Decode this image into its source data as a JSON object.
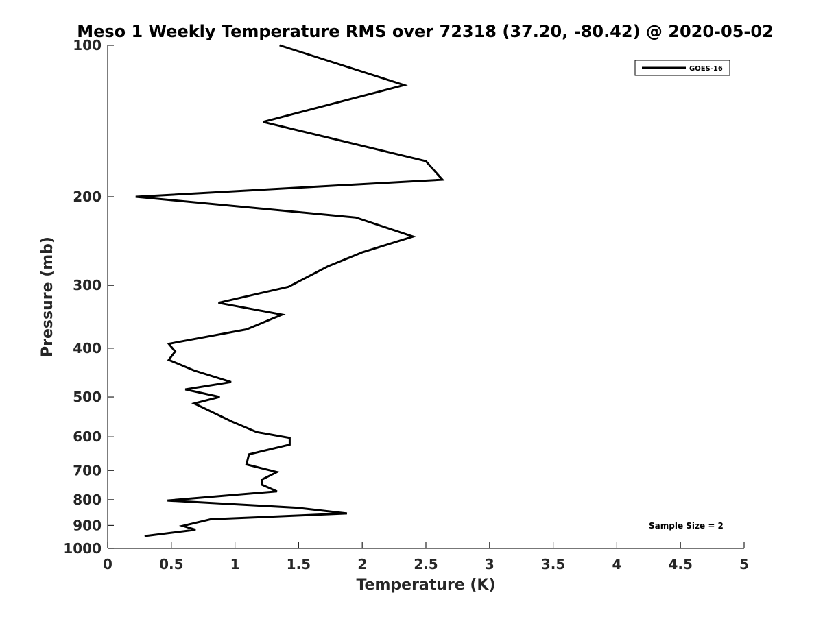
{
  "chart_data": {
    "type": "line",
    "title": "Meso 1 Weekly Temperature RMS over 72318 (37.20, -80.42) @ 2020-05-02",
    "xlabel": "Temperature (K)",
    "ylabel": "Pressure (mb)",
    "xlim": [
      0,
      5
    ],
    "ylim": [
      100,
      1000
    ],
    "yscale": "log",
    "y_reversed": true,
    "x_ticks": [
      "0",
      "0.5",
      "1",
      "1.5",
      "2",
      "2.5",
      "3",
      "3.5",
      "4",
      "4.5",
      "5"
    ],
    "y_ticks": [
      "100",
      "200",
      "300",
      "400",
      "500",
      "600",
      "700",
      "800",
      "900",
      "1000"
    ],
    "grid": false,
    "legend": {
      "placement": "top-right",
      "entries": [
        "GOES-16"
      ]
    },
    "annotation": "Sample Size = 2",
    "series": [
      {
        "name": "GOES-16",
        "color": "#000000",
        "points": [
          [
            1.35,
            100
          ],
          [
            2.33,
            120
          ],
          [
            1.22,
            142
          ],
          [
            2.5,
            170
          ],
          [
            2.63,
            185
          ],
          [
            0.22,
            200
          ],
          [
            1.95,
            220
          ],
          [
            2.4,
            240
          ],
          [
            2.0,
            258
          ],
          [
            1.73,
            275
          ],
          [
            1.42,
            302
          ],
          [
            0.87,
            325
          ],
          [
            1.37,
            343
          ],
          [
            1.09,
            367
          ],
          [
            0.48,
            392
          ],
          [
            0.53,
            406
          ],
          [
            0.48,
            422
          ],
          [
            0.68,
            443
          ],
          [
            0.97,
            467
          ],
          [
            0.61,
            483
          ],
          [
            0.88,
            500
          ],
          [
            0.68,
            515
          ],
          [
            0.98,
            560
          ],
          [
            1.17,
            587
          ],
          [
            1.43,
            603
          ],
          [
            1.43,
            622
          ],
          [
            1.11,
            650
          ],
          [
            1.09,
            681
          ],
          [
            1.33,
            705
          ],
          [
            1.21,
            730
          ],
          [
            1.21,
            747
          ],
          [
            1.33,
            770
          ],
          [
            0.47,
            803
          ],
          [
            1.49,
            830
          ],
          [
            1.88,
            852
          ],
          [
            0.81,
            875
          ],
          [
            0.59,
            902
          ],
          [
            0.69,
            918
          ],
          [
            0.29,
            945
          ]
        ]
      }
    ]
  }
}
